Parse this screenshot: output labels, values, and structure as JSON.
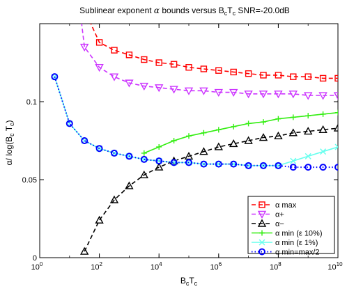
{
  "chart_data": {
    "type": "line",
    "title": "Sublinear exponent α bounds versus B_cT_c SNR=-20.0dB",
    "title_parts": {
      "prefix": "Sublinear exponent ",
      "alpha": "α",
      "mid": " bounds versus B",
      "sub1": "c",
      "T": "T",
      "sub2": "c",
      "suffix": " SNR=-20.0dB"
    },
    "xlabel_parts": {
      "B": "B",
      "sub1": "c",
      "T": "T",
      "sub2": "c"
    },
    "ylabel": "α/ log(B_cT_c)",
    "ylabel_parts": {
      "prefix": "α/ log(B",
      "sub1": "c",
      "T": " T",
      "sub2": "c",
      "suffix": ")"
    },
    "x_scale": "log",
    "xlim": [
      1,
      10000000000
    ],
    "ylim": [
      0,
      0.15
    ],
    "x_ticks": [
      {
        "value": 1,
        "base": "10",
        "exp": "0"
      },
      {
        "value": 100,
        "base": "10",
        "exp": "2"
      },
      {
        "value": 10000,
        "base": "10",
        "exp": "4"
      },
      {
        "value": 1000000,
        "base": "10",
        "exp": "6"
      },
      {
        "value": 100000000,
        "base": "10",
        "exp": "8"
      },
      {
        "value": 10000000000,
        "base": "10",
        "exp": "10"
      }
    ],
    "y_ticks": [
      {
        "value": 0,
        "label": "0"
      },
      {
        "value": 0.05,
        "label": "0.05"
      },
      {
        "value": 0.1,
        "label": "0.1"
      }
    ],
    "legend_position": "bottom-right",
    "series": [
      {
        "name": "α max",
        "color": "#ff0000",
        "marker": "square",
        "dash": "dashed",
        "x": [
          100,
          316,
          1000,
          3162,
          10000,
          31623,
          100000,
          316228,
          1000000,
          3162278,
          10000000,
          31622777,
          100000000,
          316227766,
          1000000000,
          3162277660,
          10000000000
        ],
        "y": [
          0.138,
          0.133,
          0.13,
          0.127,
          0.125,
          0.124,
          0.122,
          0.121,
          0.12,
          0.119,
          0.118,
          0.117,
          0.117,
          0.116,
          0.116,
          0.115,
          0.115
        ],
        "line_extends_to": [
          30,
          0.16
        ]
      },
      {
        "name": "α+",
        "color": "#cc33ff",
        "marker": "triangle-down",
        "dash": "dashed",
        "x": [
          31.6,
          100,
          316,
          1000,
          3162,
          10000,
          31623,
          100000,
          316228,
          1000000,
          3162278,
          10000000,
          31622777,
          100000000,
          316227766,
          1000000000,
          3162277660,
          10000000000
        ],
        "y": [
          0.135,
          0.122,
          0.116,
          0.112,
          0.11,
          0.109,
          0.108,
          0.107,
          0.107,
          0.106,
          0.106,
          0.105,
          0.105,
          0.105,
          0.105,
          0.104,
          0.104,
          0.104
        ],
        "line_extends_to": [
          22,
          0.16
        ]
      },
      {
        "name": "α−",
        "color": "#000000",
        "marker": "triangle-up",
        "dash": "dashed",
        "x": [
          31.6,
          100,
          316,
          1000,
          3162,
          10000,
          31623,
          100000,
          316228,
          1000000,
          3162278,
          10000000,
          31622777,
          100000000,
          316227766,
          1000000000,
          3162277660,
          10000000000
        ],
        "y": [
          0.004,
          0.024,
          0.037,
          0.046,
          0.053,
          0.058,
          0.062,
          0.065,
          0.068,
          0.071,
          0.073,
          0.075,
          0.077,
          0.078,
          0.08,
          0.081,
          0.082,
          0.083
        ]
      },
      {
        "name": "α min (ε 10%)",
        "color": "#33ee11",
        "marker": "plus",
        "dash": "solid",
        "x": [
          3162,
          10000,
          31623,
          100000,
          316228,
          1000000,
          3162278,
          10000000,
          31622777,
          100000000,
          316227766,
          1000000000,
          3162277660,
          10000000000
        ],
        "y": [
          0.067,
          0.071,
          0.075,
          0.078,
          0.08,
          0.082,
          0.084,
          0.086,
          0.087,
          0.089,
          0.09,
          0.091,
          0.092,
          0.093
        ]
      },
      {
        "name": "α min (ε 1%)",
        "color": "#66ffee",
        "marker": "x",
        "dash": "solid",
        "x": [
          3.16,
          10,
          31.6,
          100,
          316,
          1000,
          3162,
          10000,
          31623,
          100000,
          316228,
          1000000,
          3162278,
          10000000,
          31622777,
          100000000,
          316227766,
          1000000000,
          3162277660,
          10000000000
        ],
        "y": [
          0.116,
          0.086,
          0.075,
          0.07,
          0.067,
          0.065,
          0.063,
          0.062,
          0.061,
          0.061,
          0.06,
          0.06,
          0.06,
          0.059,
          0.059,
          0.059,
          0.062,
          0.065,
          0.068,
          0.071
        ]
      },
      {
        "name": "α min=max/2",
        "color": "#0000ff",
        "marker": "circle",
        "dash": "dotted",
        "x": [
          3.16,
          10,
          31.6,
          100,
          316,
          1000,
          3162,
          10000,
          31623,
          100000,
          316228,
          1000000,
          3162278,
          10000000,
          31622777,
          100000000,
          316227766,
          1000000000,
          3162277660,
          10000000000
        ],
        "y": [
          0.116,
          0.086,
          0.075,
          0.07,
          0.067,
          0.065,
          0.063,
          0.062,
          0.061,
          0.061,
          0.06,
          0.06,
          0.06,
          0.059,
          0.059,
          0.059,
          0.058,
          0.058,
          0.058,
          0.058
        ]
      }
    ]
  }
}
